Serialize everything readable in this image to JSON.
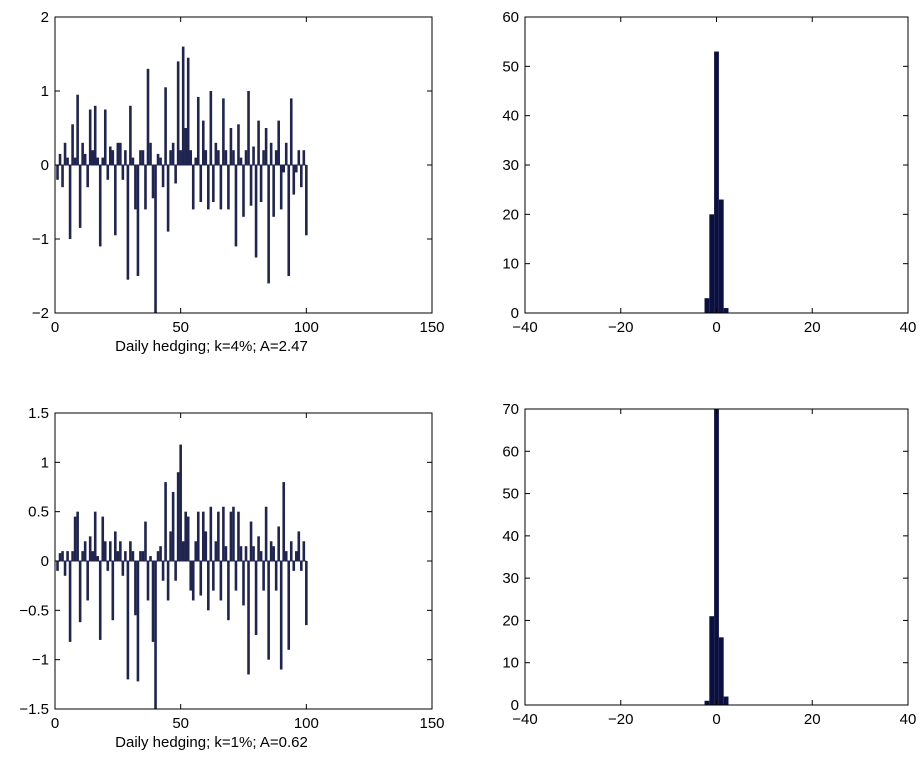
{
  "chart_data": [
    {
      "type": "bar",
      "panel": "top-left",
      "xlabel": "Daily hedging; k=4%; A=2.47",
      "title": "",
      "ylabel": "",
      "xlim": [
        0,
        150
      ],
      "ylim": [
        -2,
        2
      ],
      "xticks": [
        0,
        50,
        100,
        150
      ],
      "yticks": [
        -2,
        -1,
        0,
        1,
        2
      ],
      "x": [
        1,
        2,
        3,
        4,
        5,
        6,
        7,
        8,
        9,
        10,
        11,
        12,
        13,
        14,
        15,
        16,
        17,
        18,
        19,
        20,
        21,
        22,
        23,
        24,
        25,
        26,
        27,
        28,
        29,
        30,
        31,
        32,
        33,
        34,
        35,
        36,
        37,
        38,
        39,
        40,
        41,
        42,
        43,
        44,
        45,
        46,
        47,
        48,
        49,
        50,
        51,
        52,
        53,
        54,
        55,
        56,
        57,
        58,
        59,
        60,
        61,
        62,
        63,
        64,
        65,
        66,
        67,
        68,
        69,
        70,
        71,
        72,
        73,
        74,
        75,
        76,
        77,
        78,
        79,
        80,
        81,
        82,
        83,
        84,
        85,
        86,
        87,
        88,
        89,
        90,
        91,
        92,
        93,
        94,
        95,
        96,
        97,
        98,
        99,
        100
      ],
      "values": [
        -0.2,
        0.15,
        -0.3,
        0.3,
        0.1,
        -1.0,
        0.55,
        0.1,
        0.95,
        -0.85,
        0.3,
        0.15,
        -0.3,
        0.75,
        0.2,
        0.8,
        0.1,
        -1.1,
        0.1,
        0.75,
        -0.2,
        0.25,
        0.2,
        -0.95,
        0.3,
        0.3,
        -0.2,
        0.2,
        -1.55,
        0.8,
        0.1,
        -0.6,
        -1.5,
        0.2,
        0.2,
        -0.6,
        1.3,
        0.3,
        -0.45,
        -2.0,
        0.15,
        0.1,
        -0.3,
        1.05,
        -0.9,
        0.2,
        0.3,
        -0.25,
        1.4,
        0.2,
        1.6,
        0.5,
        1.45,
        0.2,
        -0.6,
        0.1,
        0.92,
        -0.5,
        0.6,
        0.2,
        -0.6,
        1.0,
        -0.5,
        0.3,
        0.2,
        -0.6,
        0.9,
        0.2,
        -0.6,
        0.5,
        0.2,
        -1.1,
        0.55,
        0.1,
        -0.7,
        0.2,
        1.0,
        -0.55,
        0.25,
        -1.25,
        0.6,
        -0.5,
        0.2,
        0.5,
        -1.6,
        0.3,
        -0.7,
        0.2,
        0.6,
        -0.6,
        -0.1,
        0.3,
        -1.5,
        0.9,
        -0.4,
        -0.1,
        0.2,
        -0.3,
        0.2,
        -0.95
      ]
    },
    {
      "type": "bar",
      "panel": "top-right",
      "title": "",
      "xlabel": "",
      "ylabel": "",
      "xlim": [
        -40,
        40
      ],
      "ylim": [
        0,
        60
      ],
      "xticks": [
        -40,
        -20,
        0,
        20,
        40
      ],
      "yticks": [
        0,
        10,
        20,
        30,
        40,
        50,
        60
      ],
      "bins": [
        -2,
        -1,
        0,
        1,
        2
      ],
      "values": [
        3,
        20,
        53,
        23,
        1
      ]
    },
    {
      "type": "bar",
      "panel": "bottom-left",
      "xlabel": "Daily hedging; k=1%; A=0.62",
      "title": "",
      "ylabel": "",
      "xlim": [
        0,
        150
      ],
      "ylim": [
        -1.5,
        1.5
      ],
      "xticks": [
        0,
        50,
        100,
        150
      ],
      "yticks": [
        -1.5,
        -1,
        -0.5,
        0,
        0.5,
        1,
        1.5
      ],
      "x": [
        1,
        2,
        3,
        4,
        5,
        6,
        7,
        8,
        9,
        10,
        11,
        12,
        13,
        14,
        15,
        16,
        17,
        18,
        19,
        20,
        21,
        22,
        23,
        24,
        25,
        26,
        27,
        28,
        29,
        30,
        31,
        32,
        33,
        34,
        35,
        36,
        37,
        38,
        39,
        40,
        41,
        42,
        43,
        44,
        45,
        46,
        47,
        48,
        49,
        50,
        51,
        52,
        53,
        54,
        55,
        56,
        57,
        58,
        59,
        60,
        61,
        62,
        63,
        64,
        65,
        66,
        67,
        68,
        69,
        70,
        71,
        72,
        73,
        74,
        75,
        76,
        77,
        78,
        79,
        80,
        81,
        82,
        83,
        84,
        85,
        86,
        87,
        88,
        89,
        90,
        91,
        92,
        93,
        94,
        95,
        96,
        97,
        98,
        99,
        100
      ],
      "values": [
        -0.1,
        0.08,
        0.1,
        -0.15,
        0.1,
        -0.82,
        0.1,
        0.45,
        0.5,
        -0.62,
        0.1,
        0.2,
        -0.4,
        0.25,
        0.1,
        0.5,
        0.05,
        -0.8,
        0.45,
        0.2,
        -0.1,
        0.2,
        -0.6,
        0.3,
        0.1,
        0.2,
        -0.15,
        0.1,
        -1.2,
        0.2,
        0.1,
        -0.55,
        -1.22,
        0.1,
        0.1,
        0.4,
        -0.4,
        0.05,
        -0.82,
        -1.5,
        0.1,
        0.15,
        -0.2,
        0.8,
        -0.4,
        0.3,
        0.7,
        -0.2,
        0.9,
        1.18,
        0.2,
        0.5,
        0.45,
        -0.3,
        -0.4,
        0.2,
        0.5,
        -0.35,
        0.5,
        0.3,
        -0.5,
        0.55,
        -0.3,
        0.2,
        0.5,
        -0.4,
        0.55,
        0.15,
        -0.6,
        0.5,
        0.55,
        -0.3,
        0.5,
        0.15,
        -0.45,
        0.15,
        -1.15,
        0.4,
        0.15,
        -0.75,
        0.25,
        0.1,
        -0.3,
        0.55,
        -1.0,
        0.2,
        0.15,
        -0.3,
        0.35,
        -1.1,
        0.8,
        0.1,
        -0.9,
        0.2,
        -0.1,
        0.1,
        0.3,
        -0.1,
        0.2,
        -0.65
      ]
    },
    {
      "type": "bar",
      "panel": "bottom-right",
      "title": "",
      "xlabel": "",
      "ylabel": "",
      "xlim": [
        -40,
        40
      ],
      "ylim": [
        0,
        70
      ],
      "xticks": [
        -40,
        -20,
        0,
        20,
        40
      ],
      "yticks": [
        0,
        10,
        20,
        30,
        40,
        50,
        60,
        70
      ],
      "bins": [
        -2,
        -1,
        0,
        1,
        2
      ],
      "values": [
        1,
        21,
        70,
        16,
        2
      ]
    }
  ],
  "style": {
    "bar_color": "#0b1040",
    "stem_color": "#1f2550",
    "axis_color": "#000000"
  }
}
